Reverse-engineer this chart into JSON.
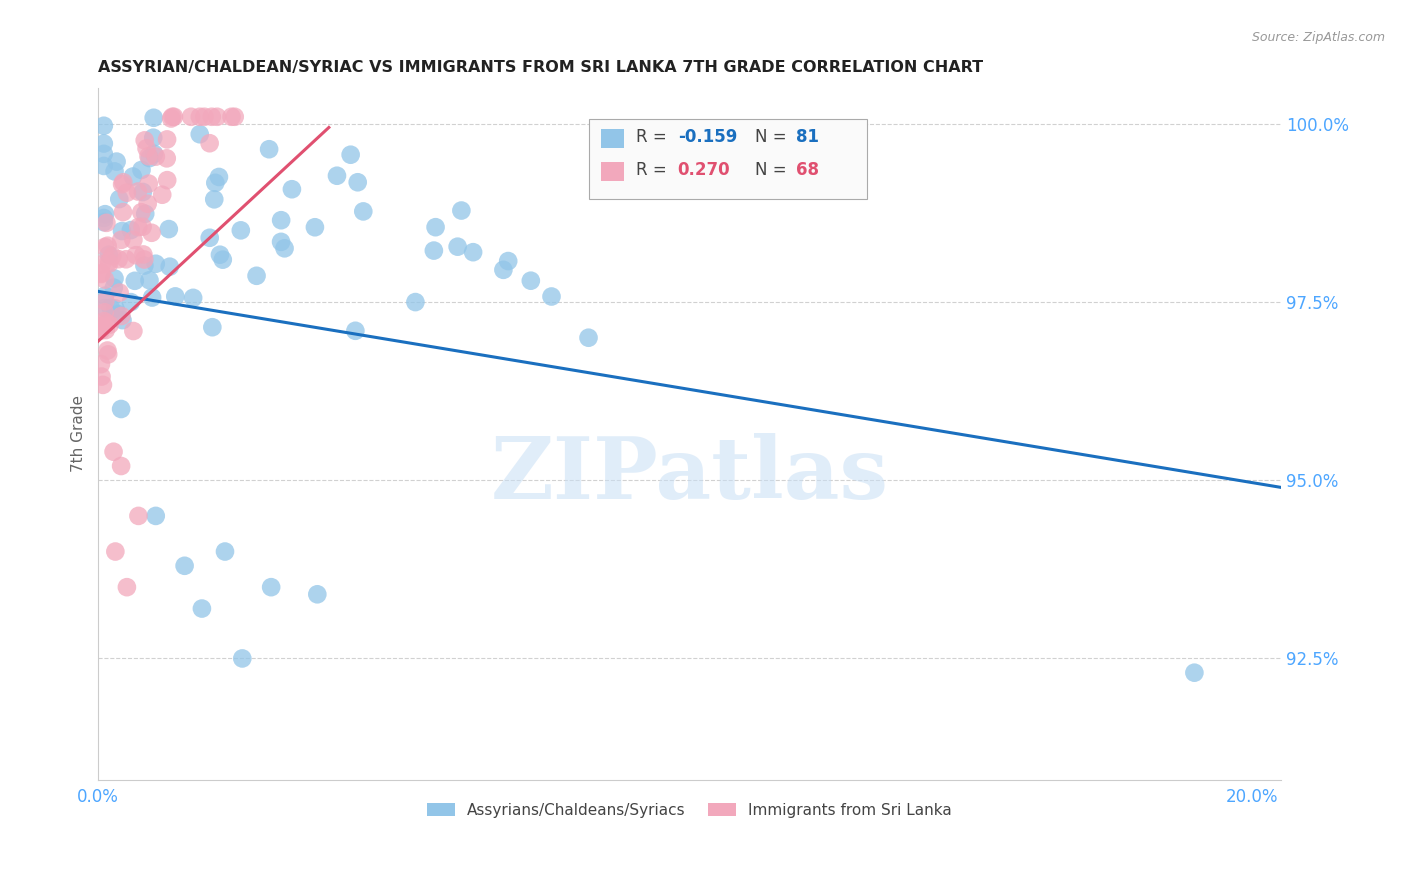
{
  "title": "ASSYRIAN/CHALDEAN/SYRIAC VS IMMIGRANTS FROM SRI LANKA 7TH GRADE CORRELATION CHART",
  "source": "Source: ZipAtlas.com",
  "xlabel_ticks": [
    0.0,
    0.05,
    0.1,
    0.15,
    0.2
  ],
  "xlabel_labels": [
    "0.0%",
    "",
    "",
    "",
    "20.0%"
  ],
  "ylabel_ticks": [
    0.925,
    0.95,
    0.975,
    1.0
  ],
  "ylabel_labels": [
    "92.5%",
    "95.0%",
    "97.5%",
    "100.0%"
  ],
  "xlim": [
    0.0,
    0.205
  ],
  "ylim": [
    0.908,
    1.005
  ],
  "ylabel": "7th Grade",
  "blue_R": -0.159,
  "blue_N": 81,
  "pink_R": 0.27,
  "pink_N": 68,
  "blue_color": "#92C5E8",
  "pink_color": "#F2A8BC",
  "blue_line_color": "#1A6FBF",
  "pink_line_color": "#E05070",
  "legend_label_blue": "Assyrians/Chaldeans/Syriacs",
  "legend_label_pink": "Immigrants from Sri Lanka",
  "watermark": "ZIPatlas",
  "blue_trend_x": [
    0.0,
    0.205
  ],
  "blue_trend_y": [
    0.9765,
    0.949
  ],
  "pink_trend_x": [
    0.0,
    0.04
  ],
  "pink_trend_y": [
    0.9695,
    0.9995
  ]
}
